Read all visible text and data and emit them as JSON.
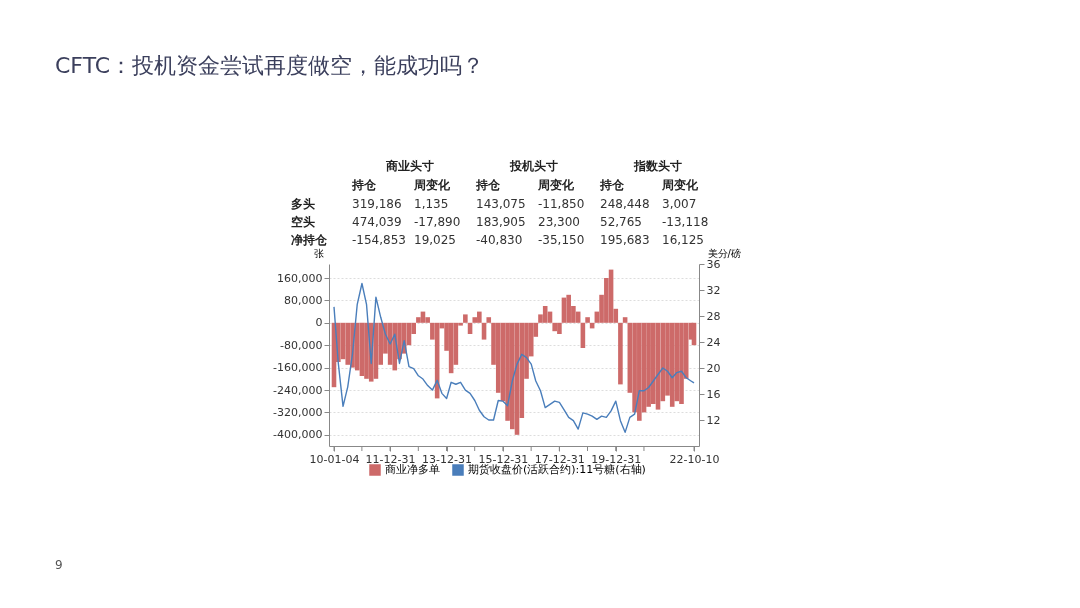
{
  "chart_data": [
    {
      "type": "other",
      "title": "CFTC：投机资金尝试再度做空，能成功吗？",
      "annotations": [
        "商业头寸",
        "投机头寸",
        "指数头寸",
        "持仓",
        "周变化",
        "持仓",
        "周变化",
        "持仓",
        "周变化",
        "多头",
        "319,186",
        "1,135",
        "143,075",
        "-11,850",
        "248,448",
        "3,007",
        "空头",
        "474,039",
        "-17,890",
        "183,905",
        "23,300",
        "52,765",
        "-13,118",
        "净持仓",
        "-154,853",
        "19,025",
        "-40,830",
        "-35,150",
        "195,683",
        "16,125",
        "9"
      ]
    },
    {
      "type": "bar",
      "ylabel": "张",
      "y2label": "美分/磅",
      "legend": "bottom",
      "grid": "y",
      "x": [
        "2010-01-04",
        "2010-03",
        "2010-05",
        "2010-07",
        "2010-09",
        "2010-11",
        "2011-01",
        "2011-03",
        "2011-05",
        "2011-07",
        "2011-09",
        "2011-11",
        "2012-01",
        "2012-03",
        "2012-05",
        "2012-07",
        "2012-09",
        "2012-11",
        "2013-01",
        "2013-03",
        "2013-05",
        "2013-07",
        "2013-09",
        "2013-11",
        "2014-01",
        "2014-03",
        "2014-05",
        "2014-07",
        "2014-09",
        "2014-11",
        "2015-01",
        "2015-03",
        "2015-05",
        "2015-07",
        "2015-09",
        "2015-11",
        "2016-01",
        "2016-03",
        "2016-05",
        "2016-07",
        "2016-09",
        "2016-11",
        "2017-01",
        "2017-03",
        "2017-05",
        "2017-07",
        "2017-09",
        "2017-11",
        "2018-01",
        "2018-03",
        "2018-05",
        "2018-07",
        "2018-09",
        "2018-11",
        "2019-01",
        "2019-03",
        "2019-05",
        "2019-07",
        "2019-09",
        "2019-11",
        "2020-01",
        "2020-03",
        "2020-05",
        "2020-07",
        "2020-09",
        "2020-11",
        "2021-01",
        "2021-03",
        "2021-05",
        "2021-07",
        "2021-09",
        "2021-11",
        "2022-01",
        "2022-03",
        "2022-05",
        "2022-07",
        "2022-09",
        "2022-10-10"
      ],
      "xlim": [
        "2010-01-04",
        "2022-10-10"
      ],
      "xticks": [
        {
          "value": "2010-01-04",
          "label": "10-01-04"
        },
        {
          "value": "2010-12-31",
          "label": null
        },
        {
          "value": "2011-12-31",
          "label": "11-12-31"
        },
        {
          "value": "2012-12-31",
          "label": null
        },
        {
          "value": "2013-12-31",
          "label": "13-12-31"
        },
        {
          "value": "2014-12-31",
          "label": null
        },
        {
          "value": "2015-12-31",
          "label": "15-12-31"
        },
        {
          "value": "2016-12-31",
          "label": null
        },
        {
          "value": "2017-12-31",
          "label": "17-12-31"
        },
        {
          "value": "2018-12-31",
          "label": null
        },
        {
          "value": "2019-12-31",
          "label": "19-12-31"
        },
        {
          "value": "2020-12-31",
          "label": null
        },
        {
          "value": "2022-10-10",
          "label": "22-10-10"
        }
      ],
      "ylim": [
        -440000,
        210000
      ],
      "yticks": [
        {
          "value": -400000,
          "label": "-400,000"
        },
        {
          "value": -320000,
          "label": "-320,000"
        },
        {
          "value": -240000,
          "label": "-240,000"
        },
        {
          "value": -160000,
          "label": "-160,000"
        },
        {
          "value": -80000,
          "label": "-80,000"
        },
        0,
        {
          "value": 80000,
          "label": "80,000"
        },
        {
          "value": 160000,
          "label": "160,000"
        }
      ],
      "y2lim": [
        8,
        36
      ],
      "y2ticks": [
        12,
        16,
        20,
        24,
        28,
        32,
        36
      ],
      "series": [
        {
          "name": "商业净多单",
          "type": "bar",
          "color": "#cd6a69",
          "values": [
            -230000,
            -140000,
            -130000,
            -150000,
            -160000,
            -170000,
            -190000,
            -200000,
            -210000,
            -200000,
            -150000,
            -110000,
            -150000,
            -170000,
            -130000,
            -110000,
            -80000,
            -40000,
            20000,
            40000,
            20000,
            -60000,
            -270000,
            -20000,
            -100000,
            -180000,
            -150000,
            -10000,
            30000,
            -40000,
            20000,
            40000,
            -60000,
            20000,
            -150000,
            -250000,
            -280000,
            -350000,
            -380000,
            -400000,
            -340000,
            -200000,
            -120000,
            -50000,
            30000,
            60000,
            40000,
            -30000,
            -40000,
            90000,
            100000,
            60000,
            40000,
            -90000,
            20000,
            -20000,
            40000,
            100000,
            160000,
            190000,
            50000,
            -220000,
            20000,
            -250000,
            -320000,
            -350000,
            -320000,
            -300000,
            -290000,
            -310000,
            -280000,
            -260000,
            -300000,
            -280000,
            -290000,
            -200000,
            -60000,
            -80000
          ]
        },
        {
          "name": "期货收盘价(活跃合约):11号糖(右轴)",
          "type": "line",
          "axis": "y2",
          "color": "#4a7ebb",
          "values": [
            29.4,
            20.7,
            14.1,
            17.1,
            22.2,
            29.8,
            33,
            29.8,
            20.7,
            30.9,
            27.8,
            25.2,
            23.7,
            25.2,
            20.7,
            24.2,
            20.2,
            19.9,
            18.8,
            18.3,
            17.3,
            16.6,
            18.1,
            16.1,
            15.3,
            17.8,
            17.5,
            17.8,
            16.6,
            16.1,
            15.0,
            13.5,
            12.5,
            12.0,
            12.0,
            15.0,
            14.9,
            14.2,
            18.0,
            20.6,
            22.1,
            21.6,
            20.6,
            18.0,
            16.5,
            13.9,
            14.4,
            14.9,
            14.7,
            13.6,
            12.4,
            11.9,
            10.6,
            13.1,
            12.9,
            12.6,
            12.1,
            12.6,
            12.4,
            13.4,
            14.9,
            11.9,
            10.1,
            12.4,
            12.9,
            16.5,
            16.5,
            17.0,
            18.0,
            19.0,
            20.0,
            19.5,
            18.5,
            19.3,
            19.5,
            18.5,
            18.0,
            17.7
          ]
        }
      ]
    }
  ]
}
